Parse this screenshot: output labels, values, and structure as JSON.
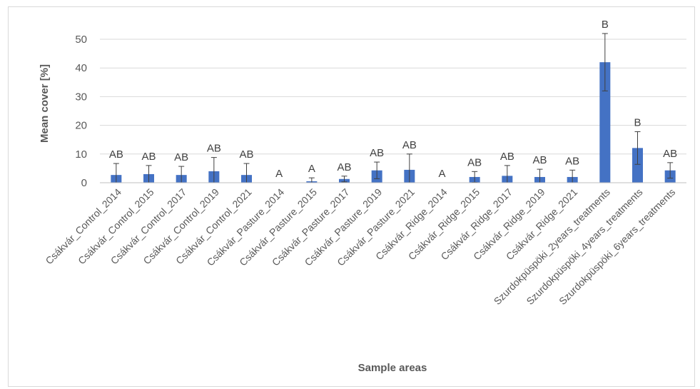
{
  "chart_data": {
    "type": "bar",
    "xlabel": "Sample areas",
    "ylabel": "Mean cover [%]",
    "ylim": [
      0,
      50
    ],
    "yticks": [
      0,
      10,
      20,
      30,
      40,
      50
    ],
    "grid": true,
    "bar_color": "#4472c4",
    "categories": [
      "Csákvár_Control_2014",
      "Csákvár_Control_2015",
      "Csákvár_Control_2017",
      "Csákvár_Control_2019",
      "Csákvár_Control_2021",
      "Csákvár_Pasture_2014",
      "Csákvár_Pasture_2015",
      "Csákvár_Pasture_2017",
      "Csákvár_Pasture_2019",
      "Csákvár_Pasture_2021",
      "Csákvár_Ridge_2014",
      "Csákvár_Ridge_2015",
      "Csákvár_Ridge_2017",
      "Csákvár_Ridge_2019",
      "Csákvár_Ridge_2021",
      "Szurdokpüspöki_2years_treatments",
      "Szurdokpüspöki_4years_treatments",
      "Szurdokpüspöki_6years_treatments"
    ],
    "values": [
      2.7,
      3.0,
      2.7,
      4.0,
      2.7,
      0,
      0.5,
      1.3,
      4.3,
      4.5,
      0,
      2.0,
      2.4,
      2.0,
      2.0,
      42.0,
      12.1,
      4.3
    ],
    "error": [
      4.0,
      3.0,
      3.0,
      4.8,
      4.0,
      0,
      1.2,
      1.0,
      2.9,
      5.5,
      0,
      1.9,
      3.6,
      2.7,
      2.4,
      10.0,
      5.7,
      2.7
    ],
    "significance_labels": [
      "AB",
      "AB",
      "AB",
      "AB",
      "AB",
      "A",
      "A",
      "AB",
      "AB",
      "AB",
      "A",
      "AB",
      "AB",
      "AB",
      "AB",
      "B",
      "B",
      "AB"
    ]
  }
}
